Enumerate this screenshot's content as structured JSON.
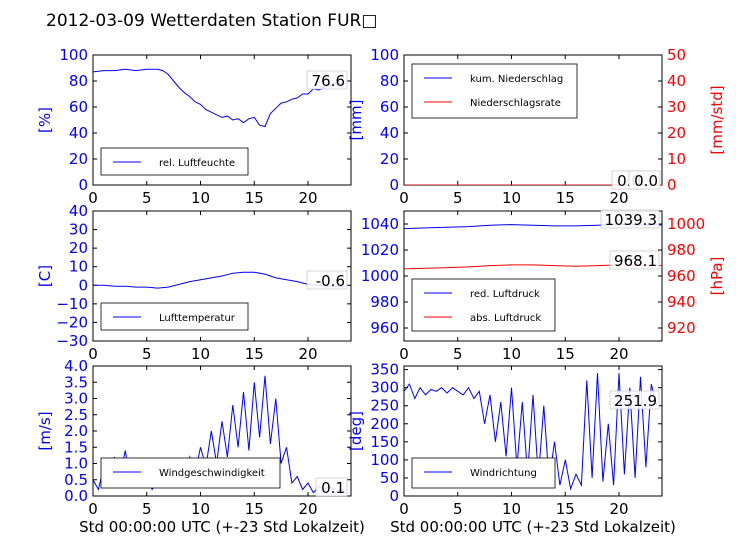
{
  "title": "2012-03-09 Wetterdaten Station FUR",
  "title_suffix_glyph": "□",
  "x_label": "Std 00:00:00 UTC (+-23 Std Lokalzeit)",
  "colors": {
    "left": "#0000ff",
    "right": "#ff0000",
    "axis": "#000000"
  },
  "chart_data": [
    {
      "id": "humidity",
      "type": "line",
      "ylabel": "[%]",
      "xlim": [
        0,
        24
      ],
      "ylim": [
        0,
        100
      ],
      "x_ticks": [
        "0",
        "5",
        "10",
        "15",
        "20"
      ],
      "y_ticks": [
        "0",
        "20",
        "40",
        "60",
        "80",
        "100"
      ],
      "legend": [
        {
          "label": "rel. Luftfeuchte"
        }
      ],
      "last_value": "76.6",
      "series": [
        {
          "name": "rel. Luftfeuchte",
          "axis": "left",
          "x": [
            0,
            1,
            2,
            3,
            4,
            5,
            6,
            6.5,
            7,
            7.5,
            8,
            8.5,
            9,
            9.5,
            10,
            10.5,
            11,
            11.5,
            12,
            12.5,
            13,
            13.5,
            14,
            14.5,
            15,
            15.5,
            16,
            16.5,
            17,
            17.5,
            18,
            18.5,
            19,
            19.5,
            20,
            20.5,
            21,
            21.5,
            22,
            22.5,
            23,
            23.5
          ],
          "y": [
            87,
            88,
            88,
            89,
            88,
            89,
            89,
            88,
            85,
            80,
            75,
            71,
            68,
            64,
            62,
            58,
            56,
            54,
            52,
            53,
            50,
            51,
            48,
            51,
            52,
            46,
            45,
            55,
            59,
            63,
            64,
            66,
            67,
            70,
            70,
            74,
            73,
            75,
            77,
            78,
            78,
            78
          ]
        }
      ]
    },
    {
      "id": "precip",
      "type": "line",
      "ylabel": "[mm]",
      "ylabel_right": "[mm/std]",
      "xlim": [
        0,
        24
      ],
      "ylim": [
        0,
        100
      ],
      "ylim_right": [
        0,
        50
      ],
      "x_ticks": [
        "0",
        "5",
        "10",
        "15",
        "20"
      ],
      "y_ticks": [
        "0",
        "20",
        "40",
        "60",
        "80",
        "100"
      ],
      "y_ticks_right": [
        "0",
        "10",
        "20",
        "30",
        "40",
        "50"
      ],
      "legend": [
        {
          "label": "kum. Niederschlag"
        },
        {
          "label": "Niederschlagsrate"
        }
      ],
      "last_value": "0.0",
      "last_value_right": "0.0",
      "series": [
        {
          "name": "kum. Niederschlag",
          "axis": "left",
          "x": [
            0,
            24
          ],
          "y": [
            0,
            0
          ]
        },
        {
          "name": "Niederschlagsrate",
          "axis": "right",
          "x": [
            0,
            24
          ],
          "y": [
            0,
            0
          ]
        }
      ]
    },
    {
      "id": "temperature",
      "type": "line",
      "ylabel": "[C]",
      "xlim": [
        0,
        24
      ],
      "ylim": [
        -30,
        40
      ],
      "x_ticks": [
        "0",
        "5",
        "10",
        "15",
        "20"
      ],
      "y_ticks": [
        "−30",
        "−20",
        "−10",
        "0",
        "10",
        "20",
        "30",
        "40"
      ],
      "legend": [
        {
          "label": "Lufttemperatur"
        }
      ],
      "last_value": "-0.6",
      "series": [
        {
          "name": "Lufttemperatur",
          "axis": "left",
          "x": [
            0,
            1,
            2,
            3,
            4,
            5,
            6,
            7,
            8,
            9,
            10,
            11,
            12,
            13,
            14,
            15,
            16,
            17,
            18,
            19,
            20,
            21,
            22,
            23,
            23.5
          ],
          "y": [
            0,
            0,
            -0.5,
            -0.5,
            -1,
            -1,
            -1.5,
            -1,
            0.5,
            2,
            3,
            4,
            5,
            6.5,
            7,
            7,
            6,
            4,
            3,
            2,
            0.5,
            0,
            -0.5,
            -0.6,
            -0.6
          ]
        }
      ]
    },
    {
      "id": "pressure",
      "type": "line",
      "ylabel": "",
      "ylabel_right": "[hPa]",
      "xlim": [
        0,
        24
      ],
      "ylim": [
        950,
        1050
      ],
      "ylim_right": [
        910,
        1010
      ],
      "x_ticks": [
        "0",
        "5",
        "10",
        "15",
        "20"
      ],
      "y_ticks": [
        "960",
        "980",
        "1000",
        "1020",
        "1040"
      ],
      "y_ticks_right": [
        "920",
        "940",
        "960",
        "980",
        "1000"
      ],
      "legend": [
        {
          "label": "red. Luftdruck"
        },
        {
          "label": "abs. Luftdruck"
        }
      ],
      "last_value": "1039.3",
      "last_value_right": "968.1",
      "series": [
        {
          "name": "red. Luftdruck",
          "axis": "left",
          "x": [
            0,
            2,
            4,
            6,
            8,
            10,
            12,
            14,
            16,
            18,
            20,
            22,
            24
          ],
          "y": [
            1036.5,
            1037,
            1037.5,
            1038,
            1039,
            1039.5,
            1039,
            1038.5,
            1038.5,
            1039,
            1039.5,
            1039.3,
            1039.3
          ]
        },
        {
          "name": "abs. Luftdruck",
          "axis": "right",
          "x": [
            0,
            2,
            4,
            6,
            8,
            10,
            12,
            14,
            16,
            18,
            20,
            22,
            24
          ],
          "y": [
            965.5,
            966,
            966.5,
            967,
            968,
            968.5,
            968.5,
            968,
            967.5,
            968,
            968.5,
            968.1,
            968.1
          ]
        }
      ]
    },
    {
      "id": "wind_speed",
      "type": "line",
      "ylabel": "[m/s]",
      "xlim": [
        0,
        24
      ],
      "ylim": [
        0,
        4
      ],
      "x_ticks": [
        "0",
        "5",
        "10",
        "15",
        "20"
      ],
      "y_ticks": [
        "0.0",
        "0.5",
        "1.0",
        "1.5",
        "2.0",
        "2.5",
        "3.0",
        "3.5",
        "4.0"
      ],
      "legend": [
        {
          "label": "Windgeschwindigkeit"
        }
      ],
      "last_value": "0.1",
      "series": [
        {
          "name": "Windgeschwindigkeit",
          "axis": "left",
          "x": [
            0,
            0.5,
            1,
            1.5,
            2,
            2.5,
            3,
            3.5,
            4,
            4.5,
            5,
            5.5,
            6,
            6.5,
            7,
            7.5,
            8,
            8.5,
            9,
            9.5,
            10,
            10.5,
            11,
            11.5,
            12,
            12.5,
            13,
            13.5,
            14,
            14.5,
            15,
            15.5,
            16,
            16.5,
            17,
            17.5,
            18,
            18.5,
            19,
            19.5,
            20,
            20.5,
            21,
            21.5,
            22,
            22.5,
            23,
            23.5
          ],
          "y": [
            0.5,
            0.2,
            0.9,
            0.3,
            1.2,
            0.6,
            1.4,
            0.4,
            1.0,
            0.3,
            0.7,
            0.2,
            0.5,
            0.3,
            0.8,
            0.4,
            1.0,
            0.5,
            1.2,
            0.7,
            1.5,
            0.9,
            2.0,
            1.0,
            2.3,
            1.2,
            2.8,
            1.5,
            3.2,
            1.4,
            3.5,
            1.8,
            3.7,
            1.6,
            3.0,
            1.0,
            1.5,
            0.4,
            0.6,
            0.2,
            0.4,
            0.1,
            0.3,
            0.2,
            0.3,
            0.1,
            0.2,
            0.1
          ]
        }
      ]
    },
    {
      "id": "wind_direction",
      "type": "line",
      "ylabel": "[deg]",
      "xlim": [
        0,
        24
      ],
      "ylim": [
        0,
        360
      ],
      "x_ticks": [
        "0",
        "5",
        "10",
        "15",
        "20"
      ],
      "y_ticks": [
        "0",
        "50",
        "100",
        "150",
        "200",
        "250",
        "300",
        "350"
      ],
      "legend": [
        {
          "label": "Windrichtung"
        }
      ],
      "last_value": "251.9",
      "series": [
        {
          "name": "Windrichtung",
          "axis": "left",
          "x": [
            0,
            0.5,
            1,
            1.5,
            2,
            2.5,
            3,
            3.5,
            4,
            4.5,
            5,
            5.5,
            6,
            6.5,
            7,
            7.5,
            8,
            8.5,
            9,
            9.5,
            10,
            10.5,
            11,
            11.5,
            12,
            12.5,
            13,
            13.5,
            14,
            14.5,
            15,
            15.5,
            16,
            16.5,
            17,
            17.5,
            18,
            18.5,
            19,
            19.5,
            20,
            20.5,
            21,
            21.5,
            22,
            22.5,
            23,
            23.5
          ],
          "y": [
            290,
            310,
            270,
            300,
            280,
            295,
            290,
            300,
            285,
            300,
            290,
            280,
            300,
            270,
            290,
            200,
            280,
            150,
            260,
            110,
            300,
            80,
            260,
            60,
            280,
            50,
            250,
            40,
            150,
            30,
            100,
            20,
            60,
            30,
            320,
            50,
            340,
            40,
            200,
            30,
            340,
            60,
            300,
            50,
            330,
            80,
            310,
            250
          ]
        }
      ]
    }
  ]
}
